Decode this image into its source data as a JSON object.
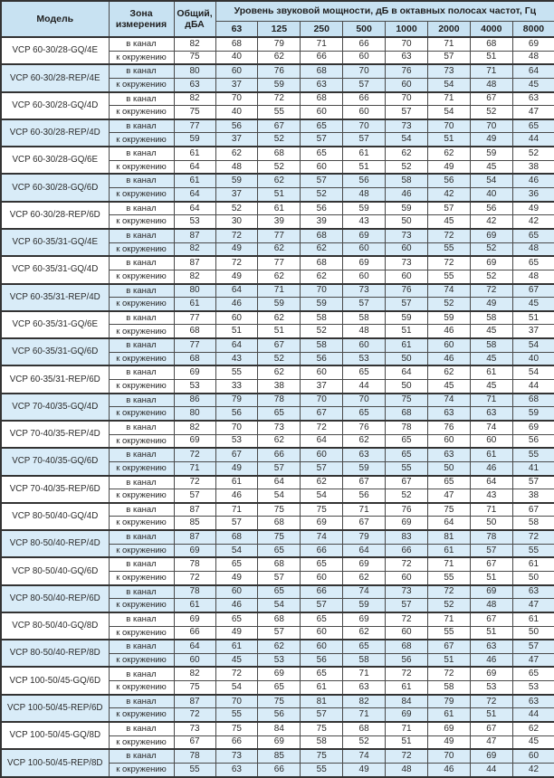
{
  "colors": {
    "header_bg": "#c8e2f2",
    "shaded_row_bg": "#d9ecf8",
    "border": "#4a4a4a"
  },
  "table": {
    "headers": {
      "model": "Модель",
      "zone": "Зона измерения",
      "total": "Общий, дБА",
      "spl_group": "Уровень звуковой мощности, дБ в октавных полосах частот, Гц",
      "frequencies": [
        "63",
        "125",
        "250",
        "500",
        "1000",
        "2000",
        "4000",
        "8000"
      ]
    },
    "zone_labels": {
      "duct": "в канал",
      "ambient": "к окружению"
    },
    "rows": [
      {
        "model": "VCP 60-30/28-GQ/4E",
        "shaded": false,
        "duct": {
          "total": 82,
          "levels": [
            68,
            79,
            71,
            66,
            70,
            71,
            68,
            69
          ]
        },
        "ambient": {
          "total": 75,
          "levels": [
            40,
            62,
            66,
            60,
            63,
            57,
            51,
            48
          ]
        }
      },
      {
        "model": "VCP 60-30/28-REP/4E",
        "shaded": true,
        "duct": {
          "total": 80,
          "levels": [
            60,
            76,
            68,
            70,
            76,
            73,
            71,
            64
          ]
        },
        "ambient": {
          "total": 63,
          "levels": [
            37,
            59,
            63,
            57,
            60,
            54,
            48,
            45
          ]
        }
      },
      {
        "model": "VCP 60-30/28-GQ/4D",
        "shaded": false,
        "duct": {
          "total": 82,
          "levels": [
            70,
            72,
            68,
            66,
            70,
            71,
            67,
            63
          ]
        },
        "ambient": {
          "total": 75,
          "levels": [
            40,
            55,
            60,
            60,
            57,
            54,
            52,
            47
          ]
        }
      },
      {
        "model": "VCP 60-30/28-REP/4D",
        "shaded": true,
        "duct": {
          "total": 77,
          "levels": [
            56,
            67,
            65,
            70,
            73,
            70,
            70,
            65
          ]
        },
        "ambient": {
          "total": 59,
          "levels": [
            37,
            52,
            57,
            57,
            54,
            51,
            49,
            44
          ]
        }
      },
      {
        "model": "VCP 60-30/28-GQ/6E",
        "shaded": false,
        "duct": {
          "total": 61,
          "levels": [
            62,
            68,
            65,
            61,
            62,
            62,
            59,
            52
          ]
        },
        "ambient": {
          "total": 64,
          "levels": [
            48,
            52,
            60,
            51,
            52,
            49,
            45,
            38
          ]
        }
      },
      {
        "model": "VCP 60-30/28-GQ/6D",
        "shaded": true,
        "duct": {
          "total": 61,
          "levels": [
            59,
            62,
            57,
            56,
            58,
            56,
            54,
            46
          ]
        },
        "ambient": {
          "total": 64,
          "levels": [
            37,
            51,
            52,
            48,
            46,
            42,
            40,
            36
          ]
        }
      },
      {
        "model": "VCP 60-30/28-REP/6D",
        "shaded": false,
        "duct": {
          "total": 64,
          "levels": [
            52,
            61,
            56,
            59,
            59,
            57,
            56,
            49
          ]
        },
        "ambient": {
          "total": 53,
          "levels": [
            30,
            39,
            39,
            43,
            50,
            45,
            42,
            42
          ]
        }
      },
      {
        "model": "VCP 60-35/31-GQ/4E",
        "shaded": true,
        "duct": {
          "total": 87,
          "levels": [
            72,
            77,
            68,
            69,
            73,
            72,
            69,
            65
          ]
        },
        "ambient": {
          "total": 82,
          "levels": [
            49,
            62,
            62,
            60,
            60,
            55,
            52,
            48
          ]
        }
      },
      {
        "model": "VCP 60-35/31-GQ/4D",
        "shaded": false,
        "duct": {
          "total": 87,
          "levels": [
            72,
            77,
            68,
            69,
            73,
            72,
            69,
            65
          ]
        },
        "ambient": {
          "total": 82,
          "levels": [
            49,
            62,
            62,
            60,
            60,
            55,
            52,
            48
          ]
        }
      },
      {
        "model": "VCP 60-35/31-REP/4D",
        "shaded": true,
        "duct": {
          "total": 80,
          "levels": [
            64,
            71,
            70,
            73,
            76,
            74,
            72,
            67
          ]
        },
        "ambient": {
          "total": 61,
          "levels": [
            46,
            59,
            59,
            57,
            57,
            52,
            49,
            45
          ]
        }
      },
      {
        "model": "VCP 60-35/31-GQ/6E",
        "shaded": false,
        "duct": {
          "total": 77,
          "levels": [
            60,
            62,
            58,
            58,
            59,
            59,
            58,
            51
          ]
        },
        "ambient": {
          "total": 68,
          "levels": [
            51,
            51,
            52,
            48,
            51,
            46,
            45,
            37
          ]
        }
      },
      {
        "model": "VCP 60-35/31-GQ/6D",
        "shaded": true,
        "duct": {
          "total": 77,
          "levels": [
            64,
            67,
            58,
            60,
            61,
            60,
            58,
            54
          ]
        },
        "ambient": {
          "total": 68,
          "levels": [
            43,
            52,
            56,
            53,
            50,
            46,
            45,
            40
          ]
        }
      },
      {
        "model": "VCP 60-35/31-REP/6D",
        "shaded": false,
        "duct": {
          "total": 69,
          "levels": [
            55,
            62,
            60,
            65,
            64,
            62,
            61,
            54
          ]
        },
        "ambient": {
          "total": 53,
          "levels": [
            33,
            38,
            37,
            44,
            50,
            45,
            45,
            44
          ]
        }
      },
      {
        "model": "VCP 70-40/35-GQ/4D",
        "shaded": true,
        "duct": {
          "total": 86,
          "levels": [
            79,
            78,
            70,
            70,
            75,
            74,
            71,
            68
          ]
        },
        "ambient": {
          "total": 80,
          "levels": [
            56,
            65,
            67,
            65,
            68,
            63,
            63,
            59
          ]
        }
      },
      {
        "model": "VCP 70-40/35-REP/4D",
        "shaded": false,
        "duct": {
          "total": 82,
          "levels": [
            70,
            73,
            72,
            76,
            78,
            76,
            74,
            69
          ]
        },
        "ambient": {
          "total": 69,
          "levels": [
            53,
            62,
            64,
            62,
            65,
            60,
            60,
            56
          ]
        }
      },
      {
        "model": "VCP 70-40/35-GQ/6D",
        "shaded": true,
        "duct": {
          "total": 72,
          "levels": [
            67,
            66,
            60,
            63,
            65,
            63,
            61,
            55
          ]
        },
        "ambient": {
          "total": 71,
          "levels": [
            49,
            57,
            57,
            59,
            55,
            50,
            46,
            41
          ]
        }
      },
      {
        "model": "VCP 70-40/35-REP/6D",
        "shaded": false,
        "duct": {
          "total": 72,
          "levels": [
            61,
            64,
            62,
            67,
            67,
            65,
            64,
            57
          ]
        },
        "ambient": {
          "total": 57,
          "levels": [
            46,
            54,
            54,
            56,
            52,
            47,
            43,
            38
          ]
        }
      },
      {
        "model": "VCP 80-50/40-GQ/4D",
        "shaded": false,
        "duct": {
          "total": 87,
          "levels": [
            71,
            75,
            75,
            71,
            76,
            75,
            71,
            67
          ]
        },
        "ambient": {
          "total": 85,
          "levels": [
            57,
            68,
            69,
            67,
            69,
            64,
            50,
            58
          ]
        }
      },
      {
        "model": "VCP 80-50/40-REP/4D",
        "shaded": true,
        "duct": {
          "total": 87,
          "levels": [
            68,
            75,
            74,
            79,
            83,
            81,
            78,
            72
          ]
        },
        "ambient": {
          "total": 69,
          "levels": [
            54,
            65,
            66,
            64,
            66,
            61,
            57,
            55
          ]
        }
      },
      {
        "model": "VCP 80-50/40-GQ/6D",
        "shaded": false,
        "duct": {
          "total": 78,
          "levels": [
            65,
            68,
            65,
            69,
            72,
            71,
            67,
            61
          ]
        },
        "ambient": {
          "total": 72,
          "levels": [
            49,
            57,
            60,
            62,
            60,
            55,
            51,
            50
          ]
        }
      },
      {
        "model": "VCP 80-50/40-REP/6D",
        "shaded": true,
        "duct": {
          "total": 78,
          "levels": [
            60,
            65,
            66,
            74,
            73,
            72,
            69,
            63
          ]
        },
        "ambient": {
          "total": 61,
          "levels": [
            46,
            54,
            57,
            59,
            57,
            52,
            48,
            47
          ]
        }
      },
      {
        "model": "VCP 80-50/40-GQ/8D",
        "shaded": false,
        "duct": {
          "total": 69,
          "levels": [
            65,
            68,
            65,
            69,
            72,
            71,
            67,
            61
          ]
        },
        "ambient": {
          "total": 66,
          "levels": [
            49,
            57,
            60,
            62,
            60,
            55,
            51,
            50
          ]
        }
      },
      {
        "model": "VCP 80-50/40-REP/8D",
        "shaded": true,
        "duct": {
          "total": 64,
          "levels": [
            61,
            62,
            60,
            65,
            68,
            67,
            63,
            57
          ]
        },
        "ambient": {
          "total": 60,
          "levels": [
            45,
            53,
            56,
            58,
            56,
            51,
            46,
            47
          ]
        }
      },
      {
        "model": "VCP 100-50/45-GQ/6D",
        "shaded": false,
        "duct": {
          "total": 82,
          "levels": [
            72,
            69,
            65,
            71,
            72,
            72,
            69,
            65
          ]
        },
        "ambient": {
          "total": 75,
          "levels": [
            54,
            65,
            61,
            63,
            61,
            58,
            53,
            53
          ]
        }
      },
      {
        "model": "VCP 100-50/45-REP/6D",
        "shaded": true,
        "duct": {
          "total": 87,
          "levels": [
            70,
            75,
            81,
            82,
            84,
            79,
            72,
            63
          ]
        },
        "ambient": {
          "total": 72,
          "levels": [
            55,
            56,
            57,
            71,
            69,
            61,
            51,
            44
          ]
        }
      },
      {
        "model": "VCP 100-50/45-GQ/8D",
        "shaded": false,
        "duct": {
          "total": 73,
          "levels": [
            75,
            84,
            75,
            68,
            71,
            69,
            67,
            62
          ]
        },
        "ambient": {
          "total": 67,
          "levels": [
            66,
            69,
            58,
            52,
            51,
            49,
            47,
            45
          ]
        }
      },
      {
        "model": "VCP 100-50/45-REP/8D",
        "shaded": true,
        "duct": {
          "total": 78,
          "levels": [
            73,
            85,
            75,
            74,
            72,
            70,
            69,
            60
          ]
        },
        "ambient": {
          "total": 55,
          "levels": [
            63,
            66,
            55,
            49,
            48,
            46,
            44,
            42
          ]
        }
      }
    ]
  }
}
